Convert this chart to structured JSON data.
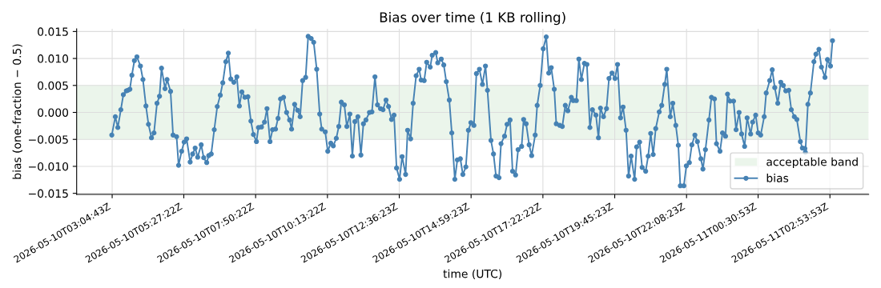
{
  "chart_data": {
    "type": "line",
    "title": "Bias over time (1 KB rolling)",
    "xlabel": "time (UTC)",
    "ylabel": "bias (one-fraction − 0.5)",
    "xlim": [
      "2026-05-10T01:54",
      "2026-05-11T04:11"
    ],
    "ylim": [
      -0.0152,
      0.0155
    ],
    "xticks": [
      {
        "value": "2026-05-10T03:04:43",
        "label": "2026-05-10T03:04:43Z"
      },
      {
        "value": "2026-05-10T05:27:22",
        "label": "2026-05-10T05:27:22Z"
      },
      {
        "value": "2026-05-10T07:50:22",
        "label": "2026-05-10T07:50:22Z"
      },
      {
        "value": "2026-05-10T10:13:22",
        "label": "2026-05-10T10:13:22Z"
      },
      {
        "value": "2026-05-10T12:36:23",
        "label": "2026-05-10T12:36:23Z"
      },
      {
        "value": "2026-05-10T14:59:23",
        "label": "2026-05-10T14:59:23Z"
      },
      {
        "value": "2026-05-10T17:22:22",
        "label": "2026-05-10T17:22:22Z"
      },
      {
        "value": "2026-05-10T19:45:23",
        "label": "2026-05-10T19:45:23Z"
      },
      {
        "value": "2026-05-10T22:08:23",
        "label": "2026-05-10T22:08:23Z"
      },
      {
        "value": "2026-05-11T00:30:53",
        "label": "2026-05-11T00:30:53Z"
      },
      {
        "value": "2026-05-11T02:53:53",
        "label": "2026-05-11T02:53:53Z"
      }
    ],
    "yticks": [
      {
        "value": -0.015,
        "label": "−0.015"
      },
      {
        "value": -0.01,
        "label": "−0.010"
      },
      {
        "value": -0.005,
        "label": "−0.005"
      },
      {
        "value": 0,
        "label": "0.000"
      },
      {
        "value": 0.005,
        "label": "0.005"
      },
      {
        "value": 0.01,
        "label": "0.010"
      },
      {
        "value": 0.015,
        "label": "0.015"
      }
    ],
    "grid": true,
    "legend": "bottom right",
    "marker": "circle",
    "line_style": "solid",
    "bands": [
      {
        "axis": "y",
        "from": -0.005,
        "to": 0.005,
        "label": "acceptable band",
        "color": "#e6f2e6"
      }
    ],
    "series": [
      {
        "name": "bias",
        "color": "#4682b4",
        "x": [
          "2026-05-10T03:04",
          "2026-05-10T03:11",
          "2026-05-10T03:16",
          "2026-05-10T03:22",
          "2026-05-10T03:27",
          "2026-05-10T03:33",
          "2026-05-10T03:36",
          "2026-05-10T03:40",
          "2026-05-10T03:44",
          "2026-05-10T03:49",
          "2026-05-10T03:54",
          "2026-05-10T04:01",
          "2026-05-10T04:06",
          "2026-05-10T04:12",
          "2026-05-10T04:17",
          "2026-05-10T04:23",
          "2026-05-10T04:28",
          "2026-05-10T04:34",
          "2026-05-10T04:39",
          "2026-05-10T04:43",
          "2026-05-10T04:50",
          "2026-05-10T04:54",
          "2026-05-10T05:01",
          "2026-05-10T05:06",
          "2026-05-10T05:13",
          "2026-05-10T05:17",
          "2026-05-10T05:23",
          "2026-05-10T05:28",
          "2026-05-10T05:33",
          "2026-05-10T05:40",
          "2026-05-10T05:45",
          "2026-05-10T05:50",
          "2026-05-10T05:55",
          "2026-05-10T06:02",
          "2026-05-10T06:07",
          "2026-05-10T06:13",
          "2026-05-10T06:17",
          "2026-05-10T06:22",
          "2026-05-10T06:28",
          "2026-05-10T06:34",
          "2026-05-10T06:40",
          "2026-05-10T06:45",
          "2026-05-10T06:51",
          "2026-05-10T06:56",
          "2026-05-10T07:01",
          "2026-05-10T07:07",
          "2026-05-10T07:13",
          "2026-05-10T07:18",
          "2026-05-10T07:23",
          "2026-05-10T07:29",
          "2026-05-10T07:35",
          "2026-05-10T07:41",
          "2026-05-10T07:46",
          "2026-05-10T07:52",
          "2026-05-10T07:56",
          "2026-05-10T08:02",
          "2026-05-10T08:08",
          "2026-05-10T08:13",
          "2026-05-10T08:19",
          "2026-05-10T08:24",
          "2026-05-10T08:30",
          "2026-05-10T08:35",
          "2026-05-10T08:40",
          "2026-05-10T08:46",
          "2026-05-10T08:52",
          "2026-05-10T08:58",
          "2026-05-10T09:02",
          "2026-05-10T09:08",
          "2026-05-10T09:14",
          "2026-05-10T09:19",
          "2026-05-10T09:24",
          "2026-05-10T09:30",
          "2026-05-10T09:35",
          "2026-05-10T09:41",
          "2026-05-10T09:46",
          "2026-05-10T09:52",
          "2026-05-10T09:58",
          "2026-05-10T10:02",
          "2026-05-10T10:09",
          "2026-05-10T10:14",
          "2026-05-10T10:20",
          "2026-05-10T10:25",
          "2026-05-10T10:31",
          "2026-05-10T10:36",
          "2026-05-10T10:41",
          "2026-05-10T10:47",
          "2026-05-10T10:52",
          "2026-05-10T10:58",
          "2026-05-10T11:03",
          "2026-05-10T11:08",
          "2026-05-10T11:14",
          "2026-05-10T11:20",
          "2026-05-10T11:25",
          "2026-05-10T11:30",
          "2026-05-10T11:37",
          "2026-05-10T11:42",
          "2026-05-10T11:48",
          "2026-05-10T11:53",
          "2026-05-10T11:59",
          "2026-05-10T12:04",
          "2026-05-10T12:10",
          "2026-05-10T12:15",
          "2026-05-10T12:21",
          "2026-05-10T12:26",
          "2026-05-10T12:31",
          "2026-05-10T12:37",
          "2026-05-10T12:42",
          "2026-05-10T12:49",
          "2026-05-10T12:53",
          "2026-05-10T12:59",
          "2026-05-10T13:04",
          "2026-05-10T13:10",
          "2026-05-10T13:16",
          "2026-05-10T13:20",
          "2026-05-10T13:26",
          "2026-05-10T13:31",
          "2026-05-10T13:38",
          "2026-05-10T13:42",
          "2026-05-10T13:49",
          "2026-05-10T13:53",
          "2026-05-10T14:00",
          "2026-05-10T14:05",
          "2026-05-10T14:10",
          "2026-05-10T14:16",
          "2026-05-10T14:21",
          "2026-05-10T14:27",
          "2026-05-10T14:32",
          "2026-05-10T14:38",
          "2026-05-10T14:43",
          "2026-05-10T14:49",
          "2026-05-10T14:54",
          "2026-05-10T14:59",
          "2026-05-10T15:05",
          "2026-05-10T15:10",
          "2026-05-10T15:16",
          "2026-05-10T15:22",
          "2026-05-10T15:28",
          "2026-05-10T15:32",
          "2026-05-10T15:39",
          "2026-05-10T15:44",
          "2026-05-10T15:49",
          "2026-05-10T15:55",
          "2026-05-10T15:59",
          "2026-05-10T16:06",
          "2026-05-10T16:11",
          "2026-05-10T16:17",
          "2026-05-10T16:22",
          "2026-05-10T16:28",
          "2026-05-10T16:33",
          "2026-05-10T16:40",
          "2026-05-10T16:44",
          "2026-05-10T16:49",
          "2026-05-10T16:55",
          "2026-05-10T17:00",
          "2026-05-10T17:07",
          "2026-05-10T17:11",
          "2026-05-10T17:17",
          "2026-05-10T17:23",
          "2026-05-10T17:29",
          "2026-05-10T17:34",
          "2026-05-10T17:39",
          "2026-05-10T17:45",
          "2026-05-10T17:49",
          "2026-05-10T17:56",
          "2026-05-10T18:01",
          "2026-05-10T18:07",
          "2026-05-10T18:12",
          "2026-05-10T18:19",
          "2026-05-10T18:23",
          "2026-05-10T18:29",
          "2026-05-10T18:34",
          "2026-05-10T18:39",
          "2026-05-10T18:45",
          "2026-05-10T18:50",
          "2026-05-10T18:56",
          "2026-05-10T19:01",
          "2026-05-10T19:08",
          "2026-05-10T19:13",
          "2026-05-10T19:17",
          "2026-05-10T19:23",
          "2026-05-10T19:29",
          "2026-05-10T19:34",
          "2026-05-10T19:40",
          "2026-05-10T19:46",
          "2026-05-10T19:51",
          "2026-05-10T19:57",
          "2026-05-10T20:02",
          "2026-05-10T20:08",
          "2026-05-10T20:13",
          "2026-05-10T20:18",
          "2026-05-10T20:25",
          "2026-05-10T20:29",
          "2026-05-10T20:35",
          "2026-05-10T20:40",
          "2026-05-10T20:47",
          "2026-05-10T20:52",
          "2026-05-10T20:57",
          "2026-05-10T21:02",
          "2026-05-10T21:07",
          "2026-05-10T21:14",
          "2026-05-10T21:19",
          "2026-05-10T21:25",
          "2026-05-10T21:29",
          "2026-05-10T21:36",
          "2026-05-10T21:41",
          "2026-05-10T21:47",
          "2026-05-10T21:52",
          "2026-05-10T21:56",
          "2026-05-10T22:03",
          "2026-05-10T22:08",
          "2026-05-10T22:14",
          "2026-05-10T22:19",
          "2026-05-10T22:25",
          "2026-05-10T22:30",
          "2026-05-10T22:37",
          "2026-05-10T22:41",
          "2026-05-10T22:46",
          "2026-05-10T22:53",
          "2026-05-10T22:58",
          "2026-05-10T23:04",
          "2026-05-10T23:08",
          "2026-05-10T23:15",
          "2026-05-10T23:20",
          "2026-05-10T23:26",
          "2026-05-10T23:30",
          "2026-05-10T23:35",
          "2026-05-10T23:42",
          "2026-05-10T23:47",
          "2026-05-10T23:53",
          "2026-05-10T23:58",
          "2026-05-11T00:04",
          "2026-05-11T00:09",
          "2026-05-11T00:16",
          "2026-05-11T00:20",
          "2026-05-11T00:26",
          "2026-05-11T00:31",
          "2026-05-11T00:36",
          "2026-05-11T00:43",
          "2026-05-11T00:47",
          "2026-05-11T00:54",
          "2026-05-11T00:59",
          "2026-05-11T01:04",
          "2026-05-11T01:10",
          "2026-05-11T01:16",
          "2026-05-11T01:21",
          "2026-05-11T01:26",
          "2026-05-11T01:32",
          "2026-05-11T01:37",
          "2026-05-11T01:43",
          "2026-05-11T01:48",
          "2026-05-11T01:55",
          "2026-05-11T01:59",
          "2026-05-11T02:04",
          "2026-05-11T02:05",
          "2026-05-11T02:10",
          "2026-05-11T02:15",
          "2026-05-11T02:22",
          "2026-05-11T02:26",
          "2026-05-11T02:32",
          "2026-05-11T02:37",
          "2026-05-11T02:44",
          "2026-05-11T02:49",
          "2026-05-11T02:55",
          "2026-05-11T02:59"
        ],
        "values": [
          -0.0042,
          -0.0008,
          -0.0028,
          0.0005,
          0.0033,
          0.004,
          0.0041,
          0.0043,
          0.0069,
          0.0096,
          0.0103,
          0.0086,
          0.0061,
          0.0012,
          -0.0022,
          -0.0047,
          -0.0038,
          0.0017,
          0.003,
          0.0082,
          0.0044,
          0.0061,
          0.0039,
          -0.0042,
          -0.0045,
          -0.0098,
          -0.0072,
          -0.0055,
          -0.0049,
          -0.0092,
          -0.0077,
          -0.0066,
          -0.0083,
          -0.006,
          -0.0084,
          -0.0093,
          -0.008,
          -0.0077,
          -0.0032,
          0.0011,
          0.0032,
          0.0055,
          0.0094,
          0.011,
          0.0062,
          0.0056,
          0.0066,
          0.0012,
          0.0038,
          0.0028,
          0.0029,
          -0.0016,
          -0.0041,
          -0.0054,
          -0.0028,
          -0.0027,
          -0.0018,
          0.0007,
          -0.0054,
          -0.0032,
          -0.0031,
          -0.0011,
          0.0025,
          0.0028,
          0.0,
          -0.0014,
          -0.0031,
          0.0015,
          0.0004,
          -0.0008,
          0.0059,
          0.0065,
          0.0141,
          0.0137,
          0.013,
          0.008,
          -0.0003,
          -0.0031,
          -0.0036,
          -0.0072,
          -0.0057,
          -0.0062,
          -0.0048,
          -0.0026,
          0.0019,
          0.0014,
          -0.0026,
          -0.0003,
          -0.0081,
          -0.0017,
          -0.0008,
          -0.0079,
          -0.0021,
          -0.0014,
          0.0,
          0.0001,
          0.0066,
          0.0014,
          0.0007,
          0.0005,
          0.0023,
          0.0011,
          -0.0013,
          -0.0005,
          -0.0103,
          -0.0124,
          -0.0082,
          -0.0115,
          -0.0033,
          -0.0049,
          0.0017,
          0.0068,
          0.008,
          0.006,
          0.0059,
          0.0093,
          0.0084,
          0.0106,
          0.0111,
          0.0092,
          0.0099,
          0.0088,
          0.0057,
          0.0023,
          -0.0038,
          -0.0124,
          -0.0088,
          -0.0086,
          -0.0115,
          -0.0101,
          -0.0033,
          -0.0019,
          -0.0024,
          0.0072,
          0.008,
          0.0052,
          0.0086,
          0.0041,
          -0.0052,
          -0.0077,
          -0.0118,
          -0.0121,
          -0.0058,
          -0.0044,
          -0.0022,
          -0.0014,
          -0.0109,
          -0.0116,
          -0.0069,
          -0.0063,
          -0.0013,
          -0.0021,
          -0.006,
          -0.008,
          -0.0042,
          0.0013,
          0.005,
          0.0118,
          0.014,
          0.0073,
          0.0083,
          0.0043,
          -0.0021,
          -0.0024,
          -0.0026,
          0.0013,
          0.0003,
          0.0028,
          0.0022,
          0.0022,
          0.0099,
          0.0061,
          0.0091,
          0.0089,
          -0.0028,
          0.0005,
          -0.0005,
          -0.0047,
          0.0008,
          -0.0008,
          0.0007,
          0.0063,
          0.0073,
          0.0063,
          0.0089,
          -0.001,
          0.001,
          -0.0033,
          -0.0118,
          -0.0081,
          -0.0124,
          -0.0064,
          -0.0055,
          -0.0102,
          -0.0109,
          -0.0081,
          -0.0039,
          -0.0078,
          -0.003,
          0.0001,
          0.0013,
          0.0052,
          0.008,
          -0.0008,
          0.0017,
          -0.0024,
          -0.0061,
          -0.0136,
          -0.0136,
          -0.0099,
          -0.0093,
          -0.006,
          -0.0042,
          -0.0054,
          -0.0086,
          -0.0105,
          -0.0069,
          -0.0014,
          0.0028,
          0.0025,
          -0.0058,
          -0.0072,
          -0.0038,
          -0.0044,
          0.0034,
          0.0021,
          0.0021,
          -0.0032,
          0.0,
          -0.004,
          -0.0063,
          -0.001,
          -0.004,
          -0.0018,
          -0.0005,
          -0.0038,
          -0.0042,
          -0.0008,
          0.0036,
          0.0059,
          0.0079,
          0.0046,
          0.0017,
          0.0056,
          0.005,
          0.004,
          0.0041,
          0.0005,
          -0.0008,
          -0.0013,
          -0.0054,
          -0.0066,
          -0.0067,
          -0.0074,
          0.0015,
          0.0036,
          0.0094,
          0.0108,
          0.0117,
          0.0084,
          0.0065,
          0.0098,
          0.0086,
          0.0133
        ]
      }
    ]
  }
}
